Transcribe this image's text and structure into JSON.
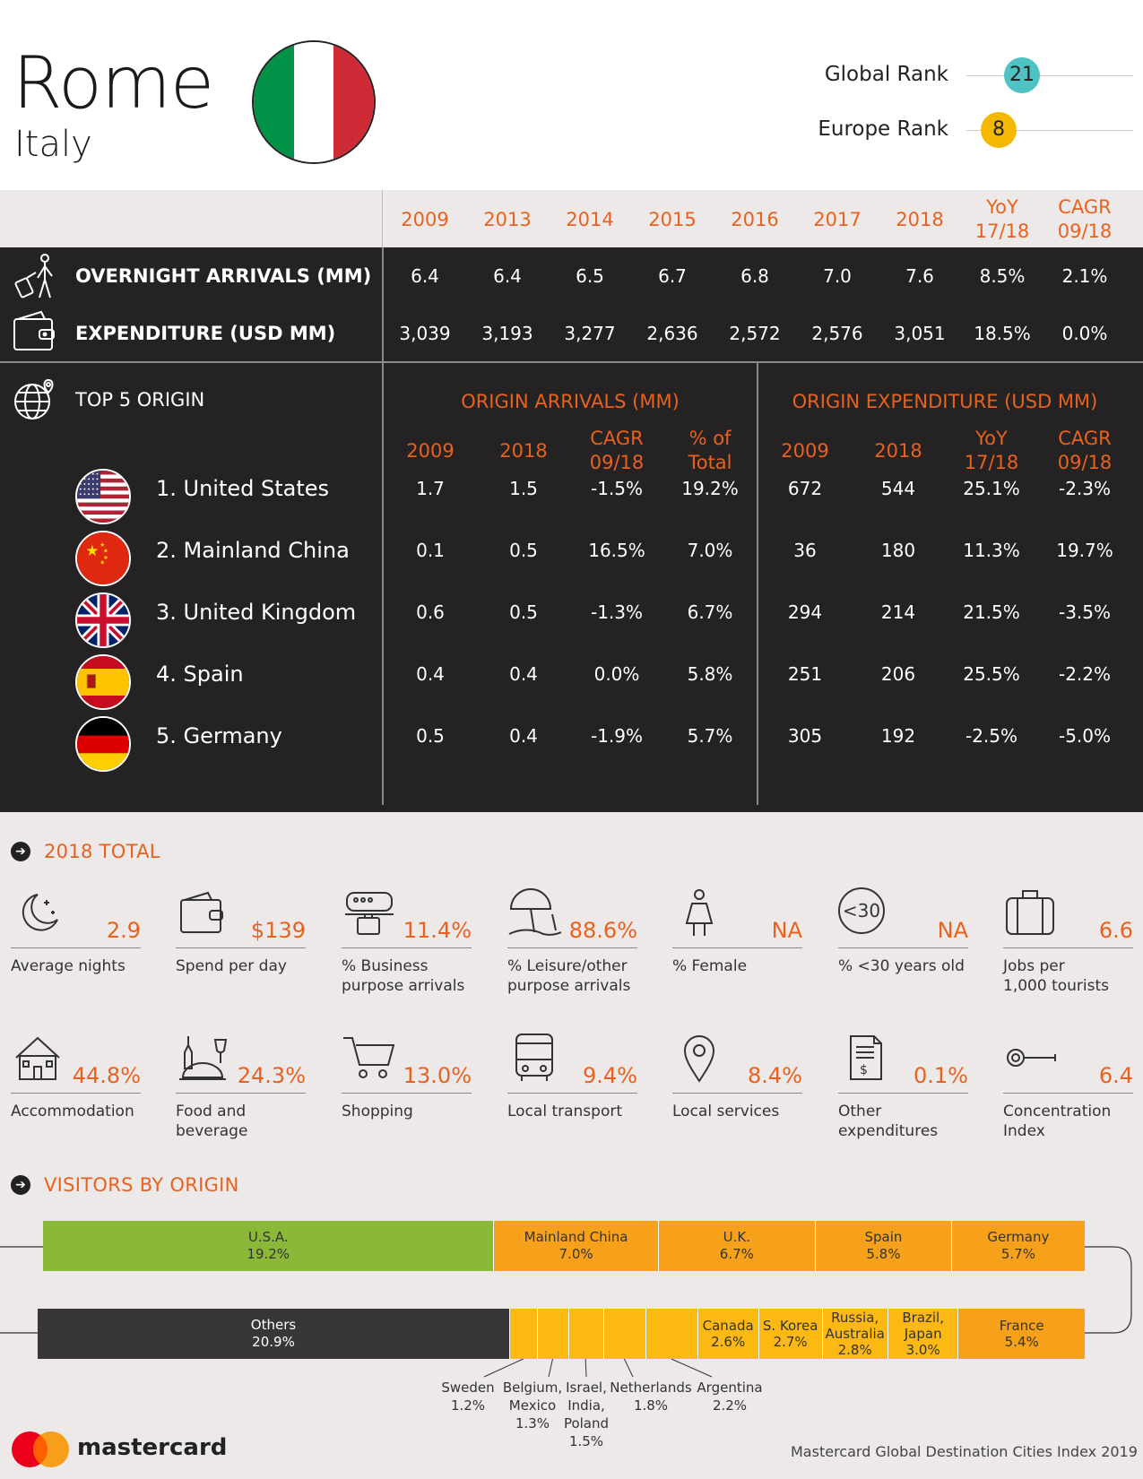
{
  "header": {
    "city": "Rome",
    "country": "Italy",
    "global_rank_label": "Global Rank",
    "global_rank": "21",
    "europe_rank_label": "Europe Rank",
    "europe_rank": "8",
    "colors": {
      "global_badge": "#4fc3c4",
      "europe_badge": "#f5b800",
      "flag": [
        "#009246",
        "#ffffff",
        "#ce2b37"
      ]
    }
  },
  "overview": {
    "columns": [
      "2009",
      "2013",
      "2014",
      "2015",
      "2016",
      "2017",
      "2018"
    ],
    "yoy_label": [
      "YoY",
      "17/18"
    ],
    "cagr_label": [
      "CAGR",
      "09/18"
    ],
    "rows": [
      {
        "label": "OVERNIGHT ARRIVALS (MM)",
        "icon": "traveler-luggage-icon",
        "values": [
          "6.4",
          "6.4",
          "6.5",
          "6.7",
          "6.8",
          "7.0",
          "7.6",
          "8.5%",
          "2.1%"
        ]
      },
      {
        "label": "EXPENDITURE (USD MM)",
        "icon": "wallet-icon",
        "values": [
          "3,039",
          "3,193",
          "3,277",
          "2,636",
          "2,572",
          "2,576",
          "3,051",
          "18.5%",
          "0.0%"
        ]
      }
    ]
  },
  "origin": {
    "title": "TOP 5 ORIGIN",
    "arrivals_title": "ORIGIN ARRIVALS (MM)",
    "expenditure_title": "ORIGIN EXPENDITURE (USD MM)",
    "arr_cols": [
      [
        "2009"
      ],
      [
        "2018"
      ],
      [
        "CAGR",
        "09/18"
      ],
      [
        "% of",
        "Total"
      ]
    ],
    "exp_cols": [
      [
        "2009"
      ],
      [
        "2018"
      ],
      [
        "YoY",
        "17/18"
      ],
      [
        "CAGR",
        "09/18"
      ]
    ],
    "rows": [
      {
        "name": "1. United States",
        "flag": "us-flag-icon",
        "values": [
          "1.7",
          "1.5",
          "-1.5%",
          "19.2%",
          "672",
          "544",
          "25.1%",
          "-2.3%"
        ]
      },
      {
        "name": "2. Mainland China",
        "flag": "china-flag-icon",
        "values": [
          "0.1",
          "0.5",
          "16.5%",
          "7.0%",
          "36",
          "180",
          "11.3%",
          "19.7%"
        ]
      },
      {
        "name": "3. United Kingdom",
        "flag": "uk-flag-icon",
        "values": [
          "0.6",
          "0.5",
          "-1.3%",
          "6.7%",
          "294",
          "214",
          "21.5%",
          "-3.5%"
        ]
      },
      {
        "name": "4. Spain",
        "flag": "spain-flag-icon",
        "values": [
          "0.4",
          "0.4",
          "0.0%",
          "5.8%",
          "251",
          "206",
          "25.5%",
          "-2.2%"
        ]
      },
      {
        "name": "5. Germany",
        "flag": "germany-flag-icon",
        "values": [
          "0.5",
          "0.4",
          "-1.9%",
          "5.7%",
          "305",
          "192",
          "-2.5%",
          "-5.0%"
        ]
      }
    ]
  },
  "totals": {
    "title": "2018 TOTAL",
    "row1": [
      {
        "icon": "moon-icon",
        "value": "2.9",
        "label": [
          "Average nights"
        ]
      },
      {
        "icon": "wallet-icon",
        "value": "$139",
        "label": [
          "Spend per day"
        ]
      },
      {
        "icon": "train-briefcase-icon",
        "value": "11.4%",
        "label": [
          "% Business",
          "purpose arrivals"
        ]
      },
      {
        "icon": "beach-umbrella-icon",
        "value": "88.6%",
        "label": [
          "% Leisure/other",
          "purpose arrivals"
        ]
      },
      {
        "icon": "female-icon",
        "value": "NA",
        "label": [
          "% Female"
        ]
      },
      {
        "icon": "under-30-icon",
        "value": "NA",
        "label": [
          "% <30 years old"
        ]
      },
      {
        "icon": "suitcase-icon",
        "value": "6.6",
        "label": [
          "Jobs per",
          "1,000 tourists"
        ]
      }
    ],
    "row2": [
      {
        "icon": "house-icon",
        "value": "44.8%",
        "label": [
          "Accommodation"
        ]
      },
      {
        "icon": "food-bottle-glass-icon",
        "value": "24.3%",
        "label": [
          "Food and",
          "beverage"
        ]
      },
      {
        "icon": "shopping-cart-icon",
        "value": "13.0%",
        "label": [
          "Shopping"
        ]
      },
      {
        "icon": "bus-icon",
        "value": "9.4%",
        "label": [
          "Local transport"
        ]
      },
      {
        "icon": "location-pin-icon",
        "value": "8.4%",
        "label": [
          "Local services"
        ]
      },
      {
        "icon": "receipt-dollar-icon",
        "value": "0.1%",
        "label": [
          "Other",
          "expenditures"
        ]
      },
      {
        "icon": "key-icon",
        "value": "6.4",
        "label": [
          "Concentration",
          "Index"
        ]
      }
    ],
    "under30_glyph": "<30"
  },
  "visitors": {
    "title": "VISITORS BY ORIGIN",
    "top_bar": [
      {
        "name": "U.S.A.",
        "pct": "19.2%"
      },
      {
        "name": "Mainland China",
        "pct": "7.0%"
      },
      {
        "name": "U.K.",
        "pct": "6.7%"
      },
      {
        "name": "Spain",
        "pct": "5.8%"
      },
      {
        "name": "Germany",
        "pct": "5.7%"
      }
    ],
    "bottom_bar": [
      {
        "name": "Others",
        "pct": "20.9%"
      },
      {
        "name": "Canada",
        "pct": "2.6%"
      },
      {
        "name": "S. Korea",
        "pct": "2.7%"
      },
      {
        "name": "Russia, Australia",
        "line1": "Russia,",
        "line2": "Australia",
        "pct": "2.8%"
      },
      {
        "name": "Brazil, Japan",
        "line1": "Brazil,",
        "line2": "Japan",
        "pct": "3.0%"
      },
      {
        "name": "France",
        "pct": "5.4%"
      }
    ],
    "callouts": [
      {
        "lines": [
          "Sweden"
        ],
        "pct": "1.2%"
      },
      {
        "lines": [
          "Belgium,",
          "Mexico"
        ],
        "pct": "1.3%"
      },
      {
        "lines": [
          "Israel,",
          "India,",
          "Poland"
        ],
        "pct": "1.5%"
      },
      {
        "lines": [
          "Netherlands"
        ],
        "pct": "1.8%"
      },
      {
        "lines": [
          "Argentina"
        ],
        "pct": "2.2%"
      }
    ],
    "colors": {
      "usa": "#8cb83a",
      "top": "#f7a11a",
      "others": "#383636",
      "bottom": "#fdb913"
    }
  },
  "footer": {
    "brand": "mastercard",
    "credit": "Mastercard Global Destination Cities Index 2019"
  }
}
